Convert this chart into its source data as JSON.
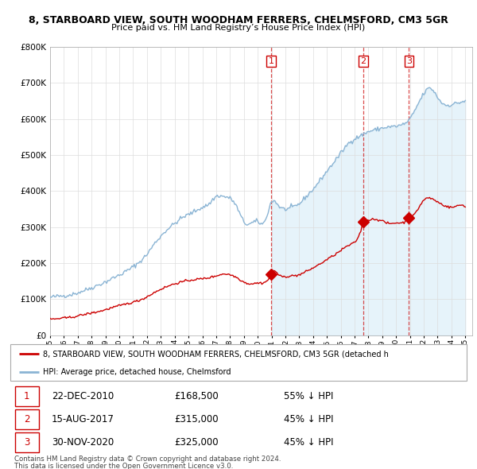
{
  "title": "8, STARBOARD VIEW, SOUTH WOODHAM FERRERS, CHELMSFORD, CM3 5GR",
  "subtitle": "Price paid vs. HM Land Registry’s House Price Index (HPI)",
  "transactions": [
    {
      "num": 1,
      "year": 2010.97,
      "price_val": 168500,
      "date": "22-DEC-2010",
      "price": "£168,500",
      "pct": "55% ↓ HPI"
    },
    {
      "num": 2,
      "year": 2017.62,
      "price_val": 315000,
      "date": "15-AUG-2017",
      "price": "£315,000",
      "pct": "45% ↓ HPI"
    },
    {
      "num": 3,
      "year": 2020.92,
      "price_val": 325000,
      "date": "30-NOV-2020",
      "price": "£325,000",
      "pct": "45% ↓ HPI"
    }
  ],
  "legend_red": "8, STARBOARD VIEW, SOUTH WOODHAM FERRERS, CHELMSFORD, CM3 5GR (detached h",
  "legend_blue": "HPI: Average price, detached house, Chelmsford",
  "footer1": "Contains HM Land Registry data © Crown copyright and database right 2024.",
  "footer2": "This data is licensed under the Open Government Licence v3.0.",
  "ylim": [
    0,
    800000
  ],
  "xlim_start": 1995.0,
  "xlim_end": 2025.5,
  "hpi_color": "#8ab4d4",
  "hpi_fill_color": "#dceef8",
  "red_color": "#cc0000",
  "bg_color": "#ffffff",
  "grid_color": "#dddddd",
  "title_fontsize": 9,
  "subtitle_fontsize": 8
}
